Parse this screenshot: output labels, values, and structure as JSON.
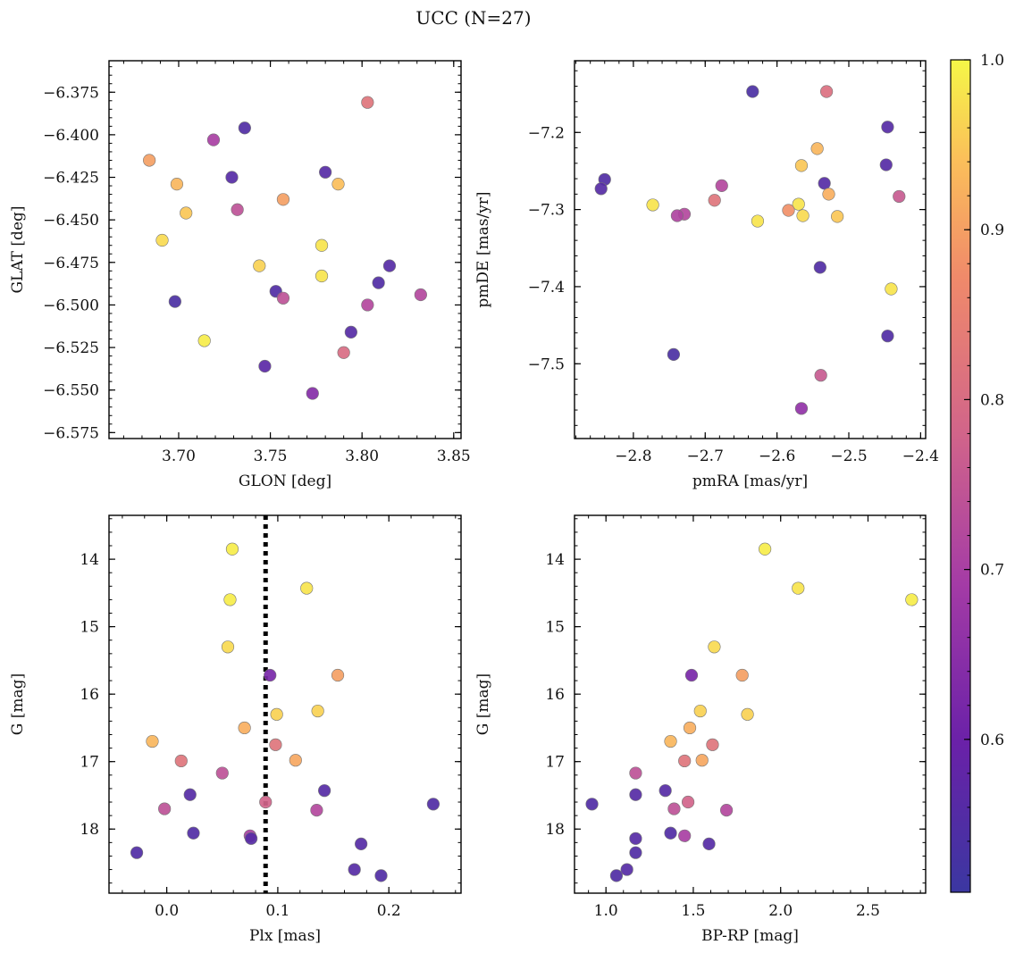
{
  "figure": {
    "title": "UCC (N=27)"
  },
  "colorbar": {
    "cmap": "plasma",
    "range": [
      0.51,
      1.0
    ],
    "ticks": [
      "0.6",
      "0.7",
      "0.8",
      "0.9",
      "1.0"
    ]
  },
  "chart_data": [
    {
      "type": "scatter",
      "panel": "top-left",
      "xlabel": "GLON [deg]",
      "ylabel": "GLAT [deg]",
      "xlim": [
        3.662,
        3.854
      ],
      "ylim": [
        -6.5785,
        -6.3565
      ],
      "xticks": [
        3.7,
        3.75,
        3.8,
        3.85
      ],
      "xtick_labels": [
        "3.70",
        "3.75",
        "3.80",
        "3.85"
      ],
      "yticks": [
        -6.375,
        -6.4,
        -6.425,
        -6.45,
        -6.475,
        -6.5,
        -6.525,
        -6.55,
        -6.575
      ],
      "ytick_labels": [
        "−6.375",
        "−6.400",
        "−6.425",
        "−6.450",
        "−6.475",
        "−6.500",
        "−6.525",
        "−6.550",
        "−6.575"
      ],
      "points": [
        {
          "x": 3.803,
          "y": -6.381,
          "c": 0.82
        },
        {
          "x": 3.736,
          "y": -6.396,
          "c": 0.55
        },
        {
          "x": 3.719,
          "y": -6.403,
          "c": 0.7
        },
        {
          "x": 3.684,
          "y": -6.415,
          "c": 0.9
        },
        {
          "x": 3.78,
          "y": -6.422,
          "c": 0.56
        },
        {
          "x": 3.729,
          "y": -6.425,
          "c": 0.56
        },
        {
          "x": 3.699,
          "y": -6.429,
          "c": 0.93
        },
        {
          "x": 3.787,
          "y": -6.429,
          "c": 0.94
        },
        {
          "x": 3.757,
          "y": -6.438,
          "c": 0.9
        },
        {
          "x": 3.732,
          "y": -6.444,
          "c": 0.74
        },
        {
          "x": 3.704,
          "y": -6.446,
          "c": 0.95
        },
        {
          "x": 3.691,
          "y": -6.462,
          "c": 0.97
        },
        {
          "x": 3.778,
          "y": -6.465,
          "c": 0.98
        },
        {
          "x": 3.744,
          "y": -6.477,
          "c": 0.96
        },
        {
          "x": 3.815,
          "y": -6.477,
          "c": 0.56
        },
        {
          "x": 3.778,
          "y": -6.483,
          "c": 0.98
        },
        {
          "x": 3.809,
          "y": -6.487,
          "c": 0.55
        },
        {
          "x": 3.753,
          "y": -6.492,
          "c": 0.55
        },
        {
          "x": 3.832,
          "y": -6.494,
          "c": 0.72
        },
        {
          "x": 3.757,
          "y": -6.496,
          "c": 0.74
        },
        {
          "x": 3.698,
          "y": -6.498,
          "c": 0.54
        },
        {
          "x": 3.803,
          "y": -6.5,
          "c": 0.72
        },
        {
          "x": 3.794,
          "y": -6.516,
          "c": 0.56
        },
        {
          "x": 3.714,
          "y": -6.521,
          "c": 0.99
        },
        {
          "x": 3.79,
          "y": -6.528,
          "c": 0.8
        },
        {
          "x": 3.747,
          "y": -6.536,
          "c": 0.57
        },
        {
          "x": 3.773,
          "y": -6.552,
          "c": 0.64
        }
      ]
    },
    {
      "type": "scatter",
      "panel": "top-right",
      "xlabel": "pmRA [mas/yr]",
      "ylabel": "pmDE [mas/yr]",
      "xlim": [
        -2.882,
        -2.393
      ],
      "ylim": [
        -7.597,
        -7.107
      ],
      "xticks": [
        -2.8,
        -2.7,
        -2.6,
        -2.5,
        -2.4
      ],
      "xtick_labels": [
        "−2.8",
        "−2.7",
        "−2.6",
        "−2.5",
        "−2.4"
      ],
      "yticks": [
        -7.2,
        -7.3,
        -7.4,
        -7.5
      ],
      "ytick_labels": [
        "−7.2",
        "−7.3",
        "−7.4",
        "−7.5"
      ],
      "points": [
        {
          "x": -2.634,
          "y": -7.147,
          "c": 0.54
        },
        {
          "x": -2.531,
          "y": -7.147,
          "c": 0.81
        },
        {
          "x": -2.446,
          "y": -7.193,
          "c": 0.56
        },
        {
          "x": -2.544,
          "y": -7.221,
          "c": 0.93
        },
        {
          "x": -2.566,
          "y": -7.243,
          "c": 0.95
        },
        {
          "x": -2.448,
          "y": -7.242,
          "c": 0.56
        },
        {
          "x": -2.84,
          "y": -7.261,
          "c": 0.55
        },
        {
          "x": -2.534,
          "y": -7.266,
          "c": 0.56
        },
        {
          "x": -2.677,
          "y": -7.269,
          "c": 0.72
        },
        {
          "x": -2.845,
          "y": -7.273,
          "c": 0.56
        },
        {
          "x": -2.528,
          "y": -7.28,
          "c": 0.92
        },
        {
          "x": -2.43,
          "y": -7.283,
          "c": 0.76
        },
        {
          "x": -2.687,
          "y": -7.288,
          "c": 0.82
        },
        {
          "x": -2.773,
          "y": -7.294,
          "c": 0.98
        },
        {
          "x": -2.57,
          "y": -7.293,
          "c": 0.98
        },
        {
          "x": -2.584,
          "y": -7.301,
          "c": 0.88
        },
        {
          "x": -2.729,
          "y": -7.306,
          "c": 0.72
        },
        {
          "x": -2.739,
          "y": -7.308,
          "c": 0.71
        },
        {
          "x": -2.564,
          "y": -7.308,
          "c": 0.97
        },
        {
          "x": -2.516,
          "y": -7.309,
          "c": 0.95
        },
        {
          "x": -2.627,
          "y": -7.315,
          "c": 0.98
        },
        {
          "x": -2.54,
          "y": -7.375,
          "c": 0.55
        },
        {
          "x": -2.441,
          "y": -7.403,
          "c": 0.98
        },
        {
          "x": -2.446,
          "y": -7.464,
          "c": 0.55
        },
        {
          "x": -2.744,
          "y": -7.488,
          "c": 0.54
        },
        {
          "x": -2.539,
          "y": -7.515,
          "c": 0.76
        },
        {
          "x": -2.566,
          "y": -7.558,
          "c": 0.66
        }
      ]
    },
    {
      "type": "scatter",
      "panel": "bottom-left",
      "xlabel": "Plx [mas]",
      "ylabel": "G [mag]",
      "xlim": [
        -0.052,
        0.265
      ],
      "ylim": [
        18.95,
        13.35
      ],
      "y_inverted": true,
      "xticks": [
        0.0,
        0.1,
        0.2
      ],
      "xtick_labels": [
        "0.0",
        "0.1",
        "0.2"
      ],
      "yticks": [
        14,
        15,
        16,
        17,
        18
      ],
      "ytick_labels": [
        "14",
        "15",
        "16",
        "17",
        "18"
      ],
      "reference_line": {
        "orientation": "vertical",
        "x": 0.089,
        "style": "dotted",
        "color": "#000000"
      },
      "points": [
        {
          "x": 0.059,
          "y": 13.85,
          "c": 0.99
        },
        {
          "x": 0.126,
          "y": 14.43,
          "c": 0.98
        },
        {
          "x": 0.057,
          "y": 14.6,
          "c": 0.99
        },
        {
          "x": 0.055,
          "y": 15.3,
          "c": 0.97
        },
        {
          "x": 0.154,
          "y": 15.72,
          "c": 0.9
        },
        {
          "x": 0.093,
          "y": 15.72,
          "c": 0.62
        },
        {
          "x": 0.136,
          "y": 16.25,
          "c": 0.96
        },
        {
          "x": 0.099,
          "y": 16.3,
          "c": 0.96
        },
        {
          "x": 0.07,
          "y": 16.5,
          "c": 0.92
        },
        {
          "x": -0.013,
          "y": 16.7,
          "c": 0.93
        },
        {
          "x": 0.098,
          "y": 16.75,
          "c": 0.82
        },
        {
          "x": 0.116,
          "y": 16.98,
          "c": 0.91
        },
        {
          "x": 0.013,
          "y": 16.99,
          "c": 0.82
        },
        {
          "x": 0.05,
          "y": 17.17,
          "c": 0.74
        },
        {
          "x": 0.142,
          "y": 17.43,
          "c": 0.56
        },
        {
          "x": 0.021,
          "y": 17.49,
          "c": 0.56
        },
        {
          "x": 0.089,
          "y": 17.6,
          "c": 0.78
        },
        {
          "x": 0.24,
          "y": 17.63,
          "c": 0.55
        },
        {
          "x": -0.002,
          "y": 17.7,
          "c": 0.74
        },
        {
          "x": 0.135,
          "y": 17.72,
          "c": 0.72
        },
        {
          "x": 0.024,
          "y": 18.06,
          "c": 0.55
        },
        {
          "x": 0.075,
          "y": 18.1,
          "c": 0.7
        },
        {
          "x": 0.076,
          "y": 18.14,
          "c": 0.56
        },
        {
          "x": 0.175,
          "y": 18.22,
          "c": 0.56
        },
        {
          "x": -0.027,
          "y": 18.35,
          "c": 0.55
        },
        {
          "x": 0.169,
          "y": 18.6,
          "c": 0.56
        },
        {
          "x": 0.193,
          "y": 18.69,
          "c": 0.55
        }
      ]
    },
    {
      "type": "scatter",
      "panel": "bottom-right",
      "xlabel": "BP-RP [mag]",
      "ylabel": "G [mag]",
      "xlim": [
        0.82,
        2.83
      ],
      "ylim": [
        18.95,
        13.35
      ],
      "y_inverted": true,
      "xticks": [
        1.0,
        1.5,
        2.0,
        2.5
      ],
      "xtick_labels": [
        "1.0",
        "1.5",
        "2.0",
        "2.5"
      ],
      "yticks": [
        14,
        15,
        16,
        17,
        18
      ],
      "ytick_labels": [
        "14",
        "15",
        "16",
        "17",
        "18"
      ],
      "points": [
        {
          "x": 1.91,
          "y": 13.85,
          "c": 0.99
        },
        {
          "x": 2.1,
          "y": 14.43,
          "c": 0.98
        },
        {
          "x": 2.75,
          "y": 14.6,
          "c": 0.99
        },
        {
          "x": 1.62,
          "y": 15.3,
          "c": 0.97
        },
        {
          "x": 1.78,
          "y": 15.72,
          "c": 0.9
        },
        {
          "x": 1.49,
          "y": 15.72,
          "c": 0.62
        },
        {
          "x": 1.54,
          "y": 16.25,
          "c": 0.96
        },
        {
          "x": 1.81,
          "y": 16.3,
          "c": 0.96
        },
        {
          "x": 1.48,
          "y": 16.5,
          "c": 0.92
        },
        {
          "x": 1.37,
          "y": 16.7,
          "c": 0.93
        },
        {
          "x": 1.61,
          "y": 16.75,
          "c": 0.82
        },
        {
          "x": 1.55,
          "y": 16.98,
          "c": 0.91
        },
        {
          "x": 1.45,
          "y": 16.99,
          "c": 0.82
        },
        {
          "x": 1.17,
          "y": 17.17,
          "c": 0.74
        },
        {
          "x": 1.34,
          "y": 17.43,
          "c": 0.56
        },
        {
          "x": 1.17,
          "y": 17.49,
          "c": 0.56
        },
        {
          "x": 1.47,
          "y": 17.6,
          "c": 0.78
        },
        {
          "x": 0.92,
          "y": 17.63,
          "c": 0.55
        },
        {
          "x": 1.39,
          "y": 17.7,
          "c": 0.74
        },
        {
          "x": 1.69,
          "y": 17.72,
          "c": 0.72
        },
        {
          "x": 1.37,
          "y": 18.06,
          "c": 0.55
        },
        {
          "x": 1.45,
          "y": 18.1,
          "c": 0.7
        },
        {
          "x": 1.17,
          "y": 18.14,
          "c": 0.56
        },
        {
          "x": 1.59,
          "y": 18.22,
          "c": 0.56
        },
        {
          "x": 1.17,
          "y": 18.35,
          "c": 0.55
        },
        {
          "x": 1.12,
          "y": 18.6,
          "c": 0.56
        },
        {
          "x": 1.06,
          "y": 18.69,
          "c": 0.55
        }
      ]
    }
  ]
}
